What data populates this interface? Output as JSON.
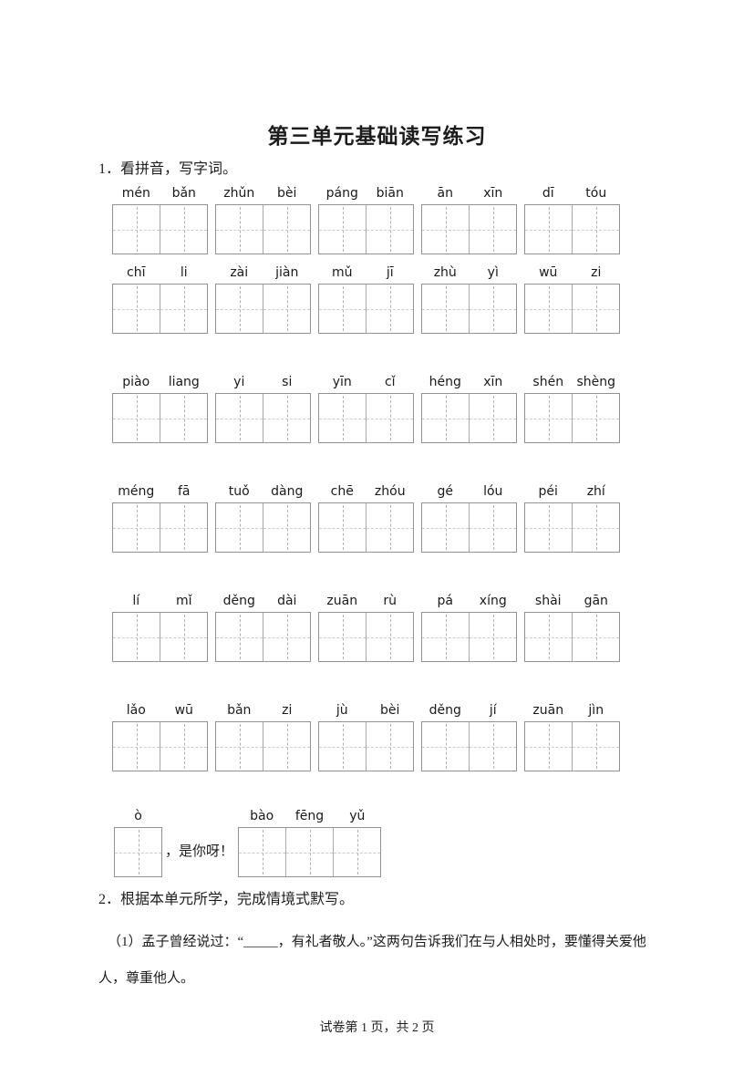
{
  "title": "第三单元基础读写练习",
  "section1": {
    "label": "1．看拼音，写字词。"
  },
  "pinyin_rows": [
    [
      [
        "mén",
        "bǎn"
      ],
      [
        "zhǔn",
        "bèi"
      ],
      [
        "páng",
        "biān"
      ],
      [
        "ān",
        "xīn"
      ],
      [
        "dī",
        "tóu"
      ]
    ],
    [
      [
        "chī",
        "li"
      ],
      [
        "zài",
        "jiàn"
      ],
      [
        "mǔ",
        "jī"
      ],
      [
        "zhù",
        "yì"
      ],
      [
        "wū",
        "zi"
      ]
    ],
    [
      [
        "piào",
        "liang"
      ],
      [
        "yi",
        "si"
      ],
      [
        "yīn",
        "cǐ"
      ],
      [
        "héng",
        "xīn"
      ],
      [
        "shén",
        "shèng"
      ]
    ],
    [
      [
        "méng",
        "fā"
      ],
      [
        "tuǒ",
        "dàng"
      ],
      [
        "chē",
        "zhóu"
      ],
      [
        "gé",
        "lóu"
      ],
      [
        "péi",
        "zhí"
      ]
    ],
    [
      [
        "lí",
        "mǐ"
      ],
      [
        "děng",
        "dài"
      ],
      [
        "zuān",
        "rù"
      ],
      [
        "pá",
        "xíng"
      ],
      [
        "shài",
        "gān"
      ]
    ],
    [
      [
        "lǎo",
        "wū"
      ],
      [
        "bǎn",
        "zi"
      ],
      [
        "jù",
        "bèi"
      ],
      [
        "děng",
        "jí"
      ],
      [
        "zuān",
        "jìn"
      ]
    ]
  ],
  "final_row": {
    "single": [
      "ò"
    ],
    "inline_text": "，是你呀！",
    "triple": [
      "bào",
      "fēng",
      "yǔ"
    ]
  },
  "section2": {
    "label": "2．根据本单元所学，完成情境式默写。",
    "item1_prefix": "（1）孟子曾经说过：“",
    "item1_blank": "_____",
    "item1_suffix": "，有礼者敬人。”这两句告诉我们在与人相处时，要懂得关爱他人，尊重他人。"
  },
  "footer": "试卷第 1 页，共 2 页"
}
